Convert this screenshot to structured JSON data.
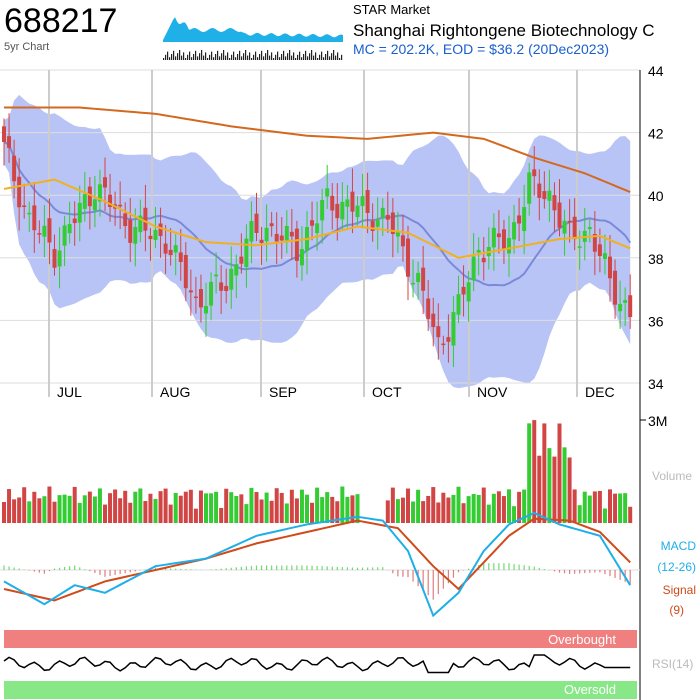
{
  "header": {
    "ticker": "688217",
    "sub_label": "5yr Chart",
    "market": "STAR Market",
    "company": "Shanghai Rightongene Biotechnology C",
    "stats": "MC = 202.2K, EOD = $36.2 (20Dec2023)"
  },
  "colors": {
    "up": "#33cc33",
    "down": "#d24545",
    "band": "#8a9cf0",
    "ma_long": "#d2691e",
    "ma_short": "#f0b020",
    "mid": "#7a8ad8",
    "macd": "#1eaee8",
    "signal": "#d04a1a",
    "overbought": "#f08080",
    "oversold": "#88e888",
    "mini": "#20b0e8"
  },
  "chart_data": [
    {
      "type": "candlestick",
      "name": "price",
      "y_ticks": [
        "44",
        "42",
        "40",
        "38",
        "36",
        "34"
      ],
      "ylim": [
        34,
        44
      ],
      "x_labels": [
        "JUL",
        "AUG",
        "SEP",
        "OCT",
        "NOV",
        "DEC"
      ],
      "annotations": {
        "ma_long_color": "orange",
        "ma_short_color": "gold",
        "bands": "bollinger"
      }
    },
    {
      "type": "bar",
      "name": "volume",
      "label": "Volume",
      "y_tick": "3M"
    },
    {
      "type": "line",
      "name": "macd",
      "labels": [
        "MACD",
        "(12-26)",
        "Signal",
        "(9)"
      ]
    },
    {
      "type": "line",
      "name": "rsi",
      "label": "RSI(14)",
      "bands": [
        "Overbought",
        "Oversold"
      ]
    }
  ]
}
